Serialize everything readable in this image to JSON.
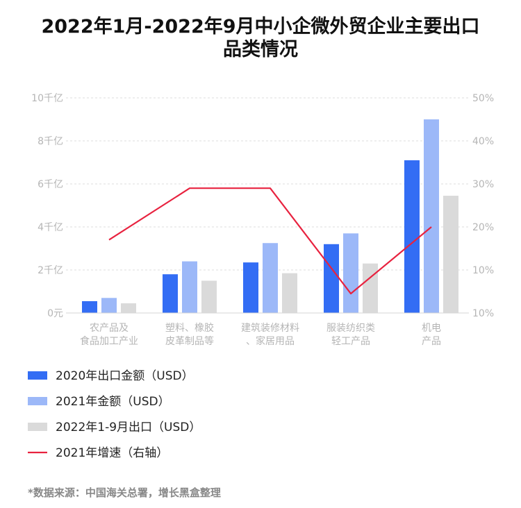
{
  "chart_data": {
    "type": "bar",
    "title_lines": [
      "2022年1月-2022年9月中小企微外贸企业主要出口",
      "品类情况"
    ],
    "categories": [
      [
        "农产品及",
        "食品加工产业"
      ],
      [
        "塑料、橡胶",
        "皮革制品等"
      ],
      [
        "建筑装修材料",
        "、家居用品"
      ],
      [
        "服装纺织类",
        "轻工产品"
      ],
      [
        "机电",
        "产品"
      ]
    ],
    "y_left": {
      "ticks": [
        "0元",
        "2千亿",
        "4千亿",
        "6千亿",
        "8千亿",
        "10千亿"
      ],
      "lim": [
        0,
        10
      ],
      "unit": "千亿"
    },
    "y_right": {
      "ticks": [
        "10%",
        "10%",
        "20%",
        "30%",
        "40%",
        "50%"
      ],
      "values": [
        0.1,
        0.1,
        0.2,
        0.3,
        0.4,
        0.5
      ]
    },
    "series": [
      {
        "name": "2020年出口金额（USD）",
        "kind": "bar",
        "color": "#336df4",
        "values": [
          0.55,
          1.8,
          2.35,
          3.2,
          7.1
        ]
      },
      {
        "name": "2021年金额（USD）",
        "kind": "bar",
        "color": "#9cb8f8",
        "values": [
          0.7,
          2.4,
          3.25,
          3.7,
          9.0
        ]
      },
      {
        "name": "2022年1-9月出口（USD）",
        "kind": "bar",
        "color": "#dadada",
        "values": [
          0.45,
          1.5,
          1.85,
          2.3,
          5.45
        ]
      },
      {
        "name": "2021年增速（右轴）",
        "kind": "line",
        "color": "#e8223f",
        "values": [
          0.17,
          0.29,
          0.29,
          0.045,
          0.2
        ]
      }
    ],
    "grid": true,
    "legend_position": "bottom-left",
    "source": "*数据来源：中国海关总署，增长黑盒整理"
  }
}
